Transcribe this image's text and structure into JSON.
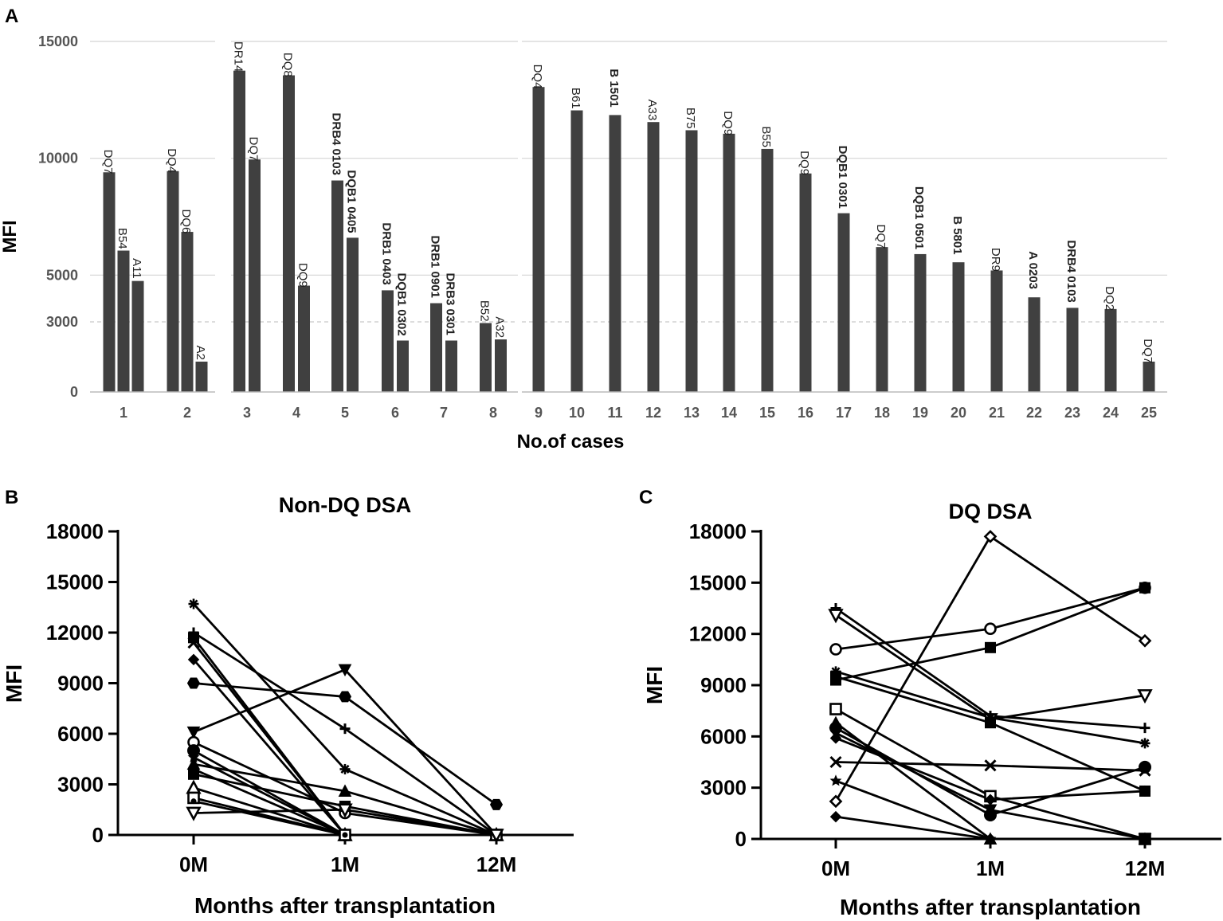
{
  "panels": {
    "a": "A",
    "b": "B",
    "c": "C"
  },
  "chart_data": [
    {
      "id": "A",
      "type": "bar",
      "ylabel": "MFI",
      "xlabel": "No.of cases",
      "yticks": [
        0,
        3000,
        5000,
        10000,
        15000
      ],
      "ylim": [
        0,
        15000
      ],
      "threshold": 3000,
      "grid": true,
      "groups": [
        {
          "case": "1",
          "bars": [
            {
              "label": "DQ7",
              "value": 9400,
              "bold": false
            },
            {
              "label": "B54",
              "value": 6050,
              "bold": false
            },
            {
              "label": "A11",
              "value": 4750,
              "bold": false
            }
          ]
        },
        {
          "case": "2",
          "bars": [
            {
              "label": "DQ4",
              "value": 9450,
              "bold": false
            },
            {
              "label": "DQ6",
              "value": 6850,
              "bold": false
            },
            {
              "label": "A2",
              "value": 1300,
              "bold": false
            }
          ]
        },
        {
          "case": "3",
          "bars": [
            {
              "label": "DR14",
              "value": 13750,
              "bold": false
            },
            {
              "label": "DQ7",
              "value": 9950,
              "bold": false
            }
          ]
        },
        {
          "case": "4",
          "bars": [
            {
              "label": "DQ8",
              "value": 13550,
              "bold": false
            },
            {
              "label": "DQ9",
              "value": 4550,
              "bold": false
            }
          ]
        },
        {
          "case": "5",
          "bars": [
            {
              "label": "DRB4 0103",
              "value": 9050,
              "bold": true
            },
            {
              "label": "DQB1 0405",
              "value": 6600,
              "bold": true
            }
          ]
        },
        {
          "case": "6",
          "bars": [
            {
              "label": "DRB1 0403",
              "value": 4350,
              "bold": true
            },
            {
              "label": "DQB1 0302",
              "value": 2200,
              "bold": true
            }
          ]
        },
        {
          "case": "7",
          "bars": [
            {
              "label": "DRB1 0901",
              "value": 3800,
              "bold": true
            },
            {
              "label": "DRB3 0301",
              "value": 2200,
              "bold": true
            }
          ]
        },
        {
          "case": "8",
          "bars": [
            {
              "label": "B52",
              "value": 2950,
              "bold": false
            },
            {
              "label": "A32",
              "value": 2250,
              "bold": false
            }
          ]
        },
        {
          "case": "9",
          "bars": [
            {
              "label": "DQ4",
              "value": 13050,
              "bold": false
            }
          ]
        },
        {
          "case": "10",
          "bars": [
            {
              "label": "B61",
              "value": 12050,
              "bold": false
            }
          ]
        },
        {
          "case": "11",
          "bars": [
            {
              "label": "B 1501",
              "value": 11850,
              "bold": true
            }
          ]
        },
        {
          "case": "12",
          "bars": [
            {
              "label": "A33",
              "value": 11550,
              "bold": false
            }
          ]
        },
        {
          "case": "13",
          "bars": [
            {
              "label": "B75",
              "value": 11200,
              "bold": false
            }
          ]
        },
        {
          "case": "14",
          "bars": [
            {
              "label": "DQ9",
              "value": 11050,
              "bold": false
            }
          ]
        },
        {
          "case": "15",
          "bars": [
            {
              "label": "B55",
              "value": 10400,
              "bold": false
            }
          ]
        },
        {
          "case": "16",
          "bars": [
            {
              "label": "DQ9",
              "value": 9350,
              "bold": false
            }
          ]
        },
        {
          "case": "17",
          "bars": [
            {
              "label": "DQB1 0301",
              "value": 7650,
              "bold": true
            }
          ]
        },
        {
          "case": "18",
          "bars": [
            {
              "label": "DQ7",
              "value": 6200,
              "bold": false
            }
          ]
        },
        {
          "case": "19",
          "bars": [
            {
              "label": "DQB1 0501",
              "value": 5900,
              "bold": true
            }
          ]
        },
        {
          "case": "20",
          "bars": [
            {
              "label": "B 5801",
              "value": 5550,
              "bold": true
            }
          ]
        },
        {
          "case": "21",
          "bars": [
            {
              "label": "DR9",
              "value": 5200,
              "bold": false
            }
          ]
        },
        {
          "case": "22",
          "bars": [
            {
              "label": "A 0203",
              "value": 4050,
              "bold": true
            }
          ]
        },
        {
          "case": "23",
          "bars": [
            {
              "label": "DRB4 0103",
              "value": 3600,
              "bold": true
            }
          ]
        },
        {
          "case": "24",
          "bars": [
            {
              "label": "DQ2",
              "value": 3550,
              "bold": false
            }
          ]
        },
        {
          "case": "25",
          "bars": [
            {
              "label": "DQ7",
              "value": 1300,
              "bold": false
            }
          ]
        }
      ]
    },
    {
      "id": "B",
      "type": "line",
      "title": "Non-DQ DSA",
      "xlabel": "Months after transplantation",
      "ylabel": "MFI",
      "x": [
        "0M",
        "1M",
        "12M"
      ],
      "ylim": [
        0,
        18000
      ],
      "yticks": [
        0,
        3000,
        6000,
        9000,
        12000,
        15000,
        18000
      ],
      "series": [
        {
          "marker": "asterisk",
          "values": [
            13700,
            3900,
            0
          ]
        },
        {
          "marker": "plus",
          "values": [
            12000,
            6300,
            0
          ]
        },
        {
          "marker": "square",
          "values": [
            11700,
            0,
            0
          ]
        },
        {
          "marker": "x",
          "values": [
            11400,
            0,
            0
          ]
        },
        {
          "marker": "diamond",
          "values": [
            10400,
            0,
            0
          ]
        },
        {
          "marker": "hexagon",
          "values": [
            9000,
            8200,
            1800
          ]
        },
        {
          "marker": "triangle-down",
          "values": [
            6100,
            9800,
            0
          ]
        },
        {
          "marker": "circle-open",
          "values": [
            5500,
            1300,
            0
          ]
        },
        {
          "marker": "circle",
          "values": [
            5000,
            0,
            0
          ]
        },
        {
          "marker": "star",
          "values": [
            4600,
            0,
            0
          ]
        },
        {
          "marker": "triangle",
          "values": [
            4200,
            2600,
            0
          ]
        },
        {
          "marker": "diamond",
          "values": [
            3900,
            0,
            0
          ]
        },
        {
          "marker": "square",
          "values": [
            3600,
            1700,
            0
          ]
        },
        {
          "marker": "triangle-open",
          "values": [
            2800,
            0,
            0
          ]
        },
        {
          "marker": "square-open",
          "values": [
            2200,
            0,
            0
          ]
        },
        {
          "marker": "dot",
          "values": [
            2000,
            0,
            0
          ]
        },
        {
          "marker": "triangle-down-open",
          "values": [
            1300,
            1500,
            0
          ]
        }
      ]
    },
    {
      "id": "C",
      "type": "line",
      "title": "DQ DSA",
      "xlabel": "Months after transplantation",
      "ylabel": "MFI",
      "x": [
        "0M",
        "1M",
        "12M"
      ],
      "ylim": [
        0,
        18000
      ],
      "yticks": [
        0,
        3000,
        6000,
        9000,
        12000,
        15000,
        18000
      ],
      "series": [
        {
          "marker": "plus",
          "values": [
            13500,
            7200,
            6500
          ]
        },
        {
          "marker": "triangle-down-open",
          "values": [
            13100,
            7000,
            8400
          ]
        },
        {
          "marker": "circle-open",
          "values": [
            11100,
            12300,
            14700
          ]
        },
        {
          "marker": "asterisk",
          "values": [
            9800,
            7100,
            5600
          ]
        },
        {
          "marker": "square",
          "values": [
            9300,
            11200,
            14700
          ]
        },
        {
          "marker": "square",
          "values": [
            9500,
            6800,
            2800
          ]
        },
        {
          "marker": "square-open",
          "values": [
            7600,
            2500,
            0
          ]
        },
        {
          "marker": "triangle",
          "values": [
            6800,
            0,
            0
          ]
        },
        {
          "marker": "circle",
          "values": [
            6500,
            1400,
            4200
          ]
        },
        {
          "marker": "triangle-down",
          "values": [
            6200,
            1700,
            0
          ]
        },
        {
          "marker": "diamond",
          "values": [
            5900,
            2300,
            2800
          ]
        },
        {
          "marker": "x",
          "values": [
            4500,
            4300,
            4000
          ]
        },
        {
          "marker": "star",
          "values": [
            3400,
            0,
            0
          ]
        },
        {
          "marker": "diamond-open",
          "values": [
            2200,
            17700,
            11600
          ]
        },
        {
          "marker": "diamond",
          "values": [
            1300,
            0,
            0
          ]
        }
      ]
    }
  ]
}
